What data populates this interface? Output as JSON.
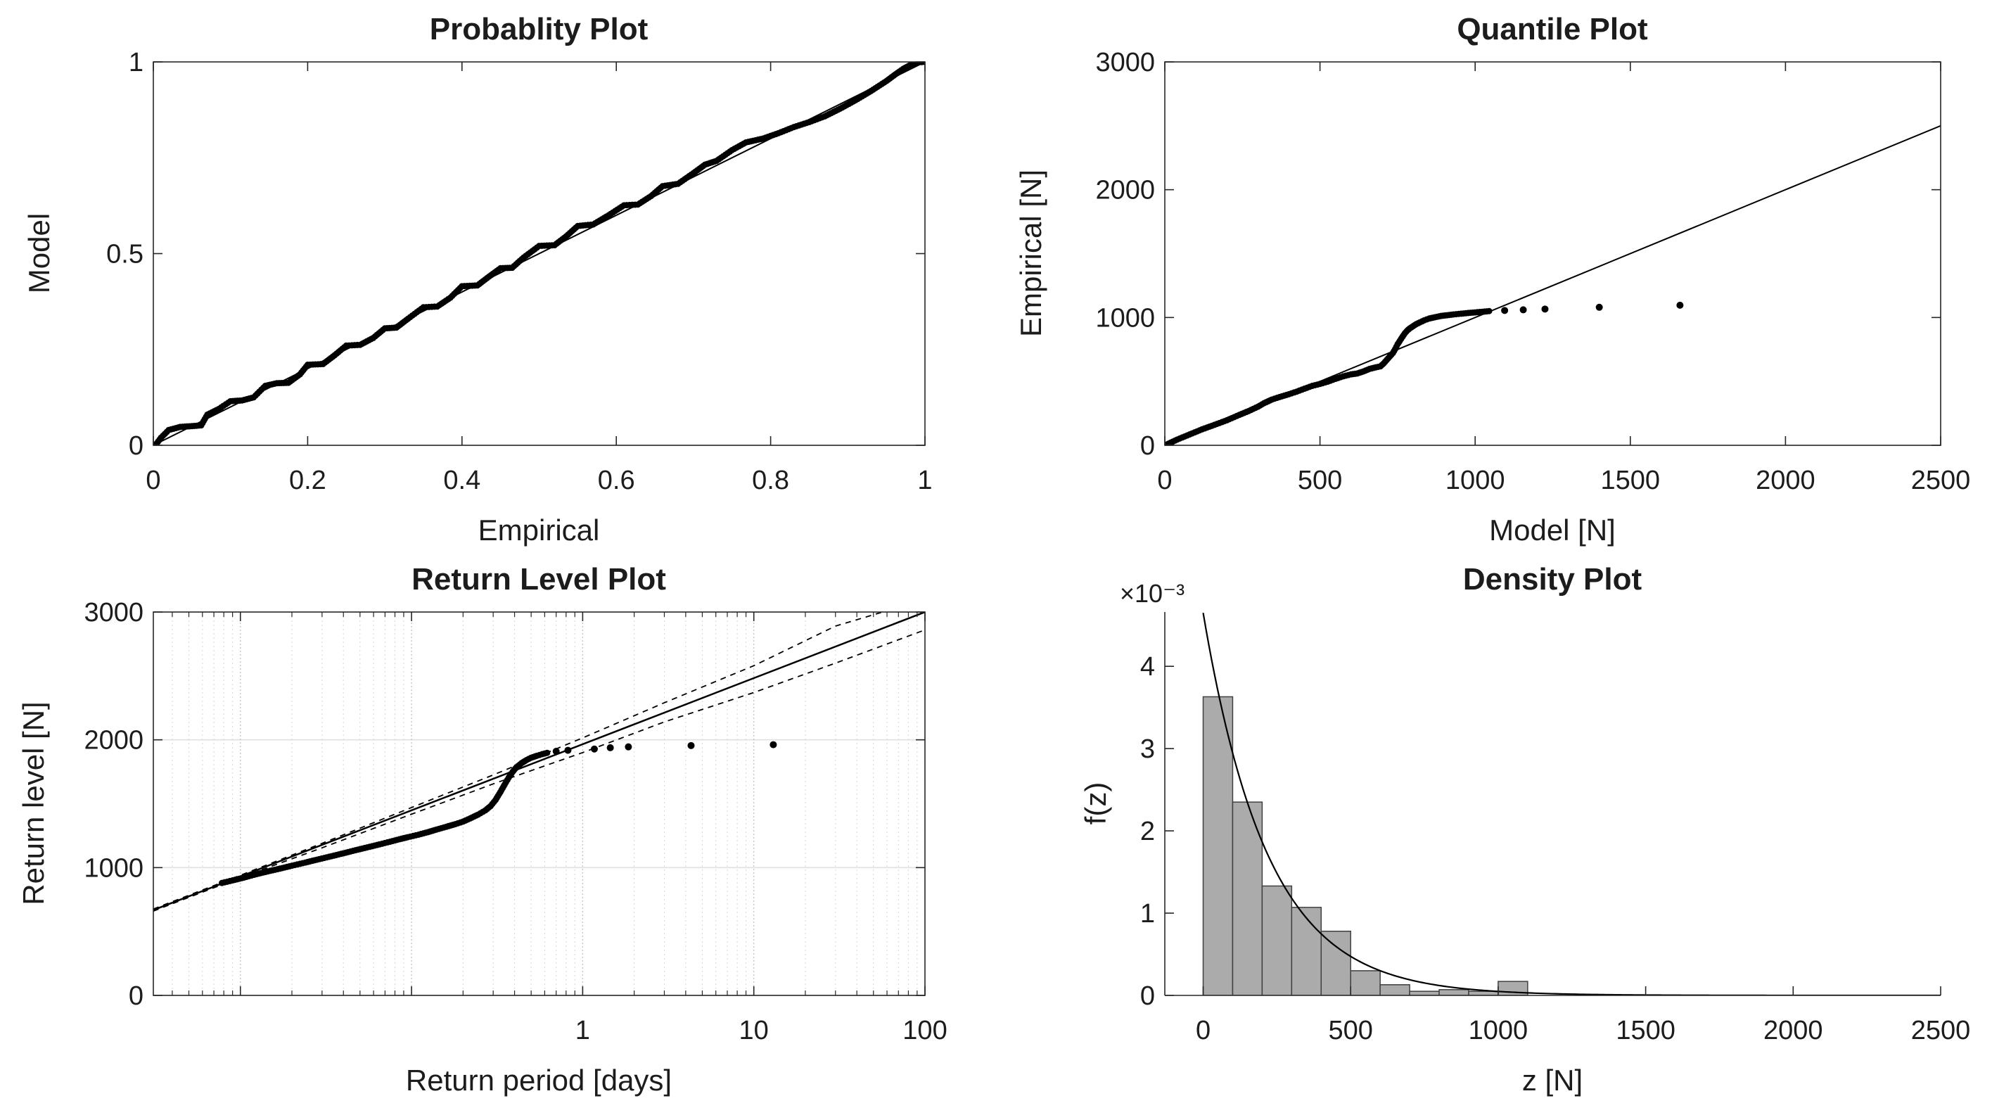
{
  "figure": {
    "background": "#ffffff",
    "axis_color": "#262626",
    "data_color": "#000000",
    "grid_major_color": "#c3c3c3",
    "grid_minor_color": "#d6d6d6",
    "bar_fill": "#ababab",
    "bar_edge": "#404040"
  },
  "chart_data": [
    {
      "id": "probability-plot",
      "type": "scatter",
      "title": "Probablity Plot",
      "xlabel": "Empirical",
      "ylabel": "Model",
      "xscale": "linear",
      "xlim": [
        0,
        1
      ],
      "ylim": [
        0,
        1
      ],
      "xticks": [
        0,
        0.2,
        0.4,
        0.6,
        0.8,
        1
      ],
      "xtick_labels": [
        "0",
        "0.2",
        "0.4",
        "0.6",
        "0.8",
        "1"
      ],
      "yticks": [
        0,
        0.5,
        1
      ],
      "ytick_labels": [
        "0",
        "0.5",
        "1"
      ],
      "box": true,
      "grid": false,
      "legend": "none",
      "series": [
        {
          "name": "reference-line",
          "kind": "line",
          "width": 2,
          "points": [
            [
              0,
              0
            ],
            [
              1,
              1
            ]
          ]
        },
        {
          "name": "model-vs-empirical-points",
          "kind": "scatter",
          "marker": 4.5,
          "interpolate": true,
          "step": 4,
          "points": [
            [
              0.004,
              0.004
            ],
            [
              0.01,
              0.02
            ],
            [
              0.02,
              0.04
            ],
            [
              0.035,
              0.048
            ],
            [
              0.05,
              0.05
            ],
            [
              0.062,
              0.052
            ],
            [
              0.07,
              0.08
            ],
            [
              0.085,
              0.095
            ],
            [
              0.1,
              0.115
            ],
            [
              0.115,
              0.117
            ],
            [
              0.13,
              0.125
            ],
            [
              0.145,
              0.155
            ],
            [
              0.16,
              0.162
            ],
            [
              0.175,
              0.163
            ],
            [
              0.19,
              0.185
            ],
            [
              0.2,
              0.21
            ],
            [
              0.22,
              0.212
            ],
            [
              0.235,
              0.235
            ],
            [
              0.25,
              0.26
            ],
            [
              0.268,
              0.262
            ],
            [
              0.285,
              0.28
            ],
            [
              0.3,
              0.305
            ],
            [
              0.315,
              0.307
            ],
            [
              0.33,
              0.33
            ],
            [
              0.35,
              0.36
            ],
            [
              0.368,
              0.362
            ],
            [
              0.385,
              0.385
            ],
            [
              0.4,
              0.415
            ],
            [
              0.42,
              0.417
            ],
            [
              0.435,
              0.44
            ],
            [
              0.45,
              0.462
            ],
            [
              0.465,
              0.463
            ],
            [
              0.48,
              0.49
            ],
            [
              0.5,
              0.52
            ],
            [
              0.52,
              0.522
            ],
            [
              0.535,
              0.545
            ],
            [
              0.55,
              0.572
            ],
            [
              0.57,
              0.576
            ],
            [
              0.59,
              0.6
            ],
            [
              0.61,
              0.626
            ],
            [
              0.628,
              0.628
            ],
            [
              0.645,
              0.65
            ],
            [
              0.66,
              0.676
            ],
            [
              0.68,
              0.682
            ],
            [
              0.7,
              0.71
            ],
            [
              0.715,
              0.732
            ],
            [
              0.73,
              0.742
            ],
            [
              0.75,
              0.77
            ],
            [
              0.768,
              0.79
            ],
            [
              0.79,
              0.8
            ],
            [
              0.81,
              0.814
            ],
            [
              0.83,
              0.83
            ],
            [
              0.85,
              0.843
            ],
            [
              0.87,
              0.858
            ],
            [
              0.89,
              0.878
            ],
            [
              0.91,
              0.9
            ],
            [
              0.93,
              0.924
            ],
            [
              0.95,
              0.95
            ],
            [
              0.962,
              0.968
            ],
            [
              0.972,
              0.982
            ],
            [
              0.982,
              0.993
            ],
            [
              0.992,
              0.999
            ],
            [
              0.999,
              1.0
            ]
          ]
        }
      ]
    },
    {
      "id": "quantile-plot",
      "type": "scatter",
      "title": "Quantile Plot",
      "xlabel": "Model [N]",
      "ylabel": "Empirical [N]",
      "xscale": "linear",
      "xlim": [
        0,
        2500
      ],
      "ylim": [
        0,
        3000
      ],
      "xticks": [
        0,
        500,
        1000,
        1500,
        2000,
        2500
      ],
      "xtick_labels": [
        "0",
        "500",
        "1000",
        "1500",
        "2000",
        "2500"
      ],
      "yticks": [
        0,
        1000,
        2000,
        3000
      ],
      "ytick_labels": [
        "0",
        "1000",
        "2000",
        "3000"
      ],
      "box": true,
      "grid": false,
      "legend": "none",
      "series": [
        {
          "name": "reference-line",
          "kind": "line",
          "width": 2,
          "points": [
            [
              0,
              0
            ],
            [
              2500,
              2500
            ]
          ]
        },
        {
          "name": "dense-quantile-points",
          "kind": "scatter",
          "marker": 4.5,
          "interpolate": true,
          "step": 4,
          "points": [
            [
              5,
              5
            ],
            [
              40,
              45
            ],
            [
              80,
              85
            ],
            [
              120,
              125
            ],
            [
              160,
              160
            ],
            [
              200,
              196
            ],
            [
              240,
              238
            ],
            [
              270,
              268
            ],
            [
              300,
              302
            ],
            [
              320,
              330
            ],
            [
              345,
              358
            ],
            [
              370,
              378
            ],
            [
              400,
              400
            ],
            [
              425,
              420
            ],
            [
              450,
              443
            ],
            [
              475,
              465
            ],
            [
              500,
              480
            ],
            [
              525,
              498
            ],
            [
              550,
              520
            ],
            [
              575,
              540
            ],
            [
              600,
              555
            ],
            [
              620,
              562
            ],
            [
              640,
              578
            ],
            [
              660,
              598
            ],
            [
              680,
              610
            ],
            [
              695,
              618
            ],
            [
              705,
              640
            ],
            [
              715,
              668
            ],
            [
              725,
              695
            ],
            [
              735,
              722
            ],
            [
              742,
              752
            ],
            [
              750,
              790
            ],
            [
              758,
              820
            ],
            [
              766,
              850
            ],
            [
              774,
              878
            ],
            [
              782,
              900
            ],
            [
              790,
              916
            ],
            [
              800,
              932
            ],
            [
              810,
              948
            ],
            [
              822,
              962
            ],
            [
              836,
              978
            ],
            [
              852,
              992
            ],
            [
              870,
              1002
            ],
            [
              890,
              1012
            ],
            [
              910,
              1018
            ],
            [
              930,
              1024
            ],
            [
              955,
              1030
            ],
            [
              985,
              1037
            ],
            [
              1015,
              1043
            ],
            [
              1045,
              1050
            ]
          ]
        },
        {
          "name": "sparse-quantile-points",
          "kind": "scatter",
          "marker": 5,
          "interpolate": false,
          "points": [
            [
              1095,
              1055
            ],
            [
              1155,
              1060
            ],
            [
              1225,
              1066
            ],
            [
              1400,
              1080
            ],
            [
              1660,
              1096
            ]
          ]
        }
      ]
    },
    {
      "id": "return-level-plot",
      "type": "scatter",
      "title": "Return Level Plot",
      "xlabel": "Return period [days]",
      "ylabel": "Return level [N]",
      "xscale": "log",
      "xlim": [
        0.0031,
        100
      ],
      "ylim": [
        0,
        3000
      ],
      "xticks": [
        0.01,
        0.1,
        1,
        10,
        100
      ],
      "xtick_labels": [
        "",
        "",
        "1",
        "10",
        "100"
      ],
      "yticks": [
        0,
        1000,
        2000,
        3000
      ],
      "ytick_labels": [
        "0",
        "1000",
        "2000",
        "3000"
      ],
      "box": true,
      "grid": true,
      "grid_y": [
        1000,
        2000
      ],
      "legend": "none",
      "series": [
        {
          "name": "fitted-return-level-line",
          "kind": "line",
          "width": 2.5,
          "points": [
            [
              0.0031,
              668
            ],
            [
              100,
              3000
            ]
          ]
        },
        {
          "name": "upper-confidence-line",
          "kind": "line",
          "width": 1.8,
          "dash": "8 7",
          "points": [
            [
              0.0031,
              676
            ],
            [
              0.01,
              940
            ],
            [
              0.03,
              1190
            ],
            [
              0.1,
              1470
            ],
            [
              0.3,
              1725
            ],
            [
              1,
              2015
            ],
            [
              3,
              2290
            ],
            [
              10,
              2580
            ],
            [
              30,
              2890
            ],
            [
              60,
              3010
            ],
            [
              100,
              3130
            ]
          ]
        },
        {
          "name": "lower-confidence-line",
          "kind": "line",
          "width": 1.8,
          "dash": "8 7",
          "points": [
            [
              0.0031,
              660
            ],
            [
              0.01,
              922
            ],
            [
              0.03,
              1155
            ],
            [
              0.1,
              1418
            ],
            [
              0.3,
              1655
            ],
            [
              1,
              1900
            ],
            [
              3,
              2140
            ],
            [
              10,
              2370
            ],
            [
              30,
              2600
            ],
            [
              100,
              2860
            ]
          ]
        },
        {
          "name": "dense-return-points",
          "kind": "scatter",
          "marker": 4.5,
          "interpolate": true,
          "step": 4,
          "points": [
            [
              0.0078,
              880
            ],
            [
              0.009,
              900
            ],
            [
              0.0105,
              922
            ],
            [
              0.012,
              944
            ],
            [
              0.014,
              966
            ],
            [
              0.017,
              992
            ],
            [
              0.02,
              1015
            ],
            [
              0.024,
              1040
            ],
            [
              0.028,
              1062
            ],
            [
              0.033,
              1085
            ],
            [
              0.04,
              1112
            ],
            [
              0.047,
              1136
            ],
            [
              0.055,
              1158
            ],
            [
              0.065,
              1182
            ],
            [
              0.075,
              1203
            ],
            [
              0.085,
              1222
            ],
            [
              0.095,
              1238
            ],
            [
              0.11,
              1258
            ],
            [
              0.125,
              1278
            ],
            [
              0.14,
              1298
            ],
            [
              0.16,
              1320
            ],
            [
              0.18,
              1340
            ],
            [
              0.2,
              1360
            ],
            [
              0.22,
              1385
            ],
            [
              0.245,
              1415
            ],
            [
              0.27,
              1448
            ],
            [
              0.29,
              1482
            ],
            [
              0.31,
              1530
            ],
            [
              0.33,
              1590
            ],
            [
              0.35,
              1650
            ],
            [
              0.37,
              1705
            ],
            [
              0.39,
              1750
            ],
            [
              0.41,
              1785
            ],
            [
              0.44,
              1818
            ],
            [
              0.47,
              1842
            ],
            [
              0.5,
              1860
            ],
            [
              0.54,
              1875
            ],
            [
              0.58,
              1888
            ],
            [
              0.62,
              1898
            ]
          ]
        },
        {
          "name": "sparse-return-points",
          "kind": "scatter",
          "marker": 5,
          "interpolate": false,
          "points": [
            [
              0.7,
              1910
            ],
            [
              0.82,
              1918
            ],
            [
              1.17,
              1928
            ],
            [
              1.45,
              1938
            ],
            [
              1.85,
              1945
            ],
            [
              4.3,
              1955
            ],
            [
              13,
              1962
            ]
          ]
        }
      ]
    },
    {
      "id": "density-plot",
      "type": "bar",
      "title": "Density Plot",
      "xlabel": "z [N]",
      "ylabel": "f(z)",
      "exponent_label": "×10⁻³",
      "xscale": "linear",
      "xlim": [
        -130,
        2500
      ],
      "ylim": [
        0,
        0.00466
      ],
      "xticks": [
        0,
        500,
        1000,
        1500,
        2000,
        2500
      ],
      "xtick_labels": [
        "0",
        "500",
        "1000",
        "1500",
        "2000",
        "2500"
      ],
      "yticks": [
        0,
        0.001,
        0.002,
        0.003,
        0.004
      ],
      "ytick_labels": [
        "0",
        "1",
        "2",
        "3",
        "4"
      ],
      "box": false,
      "grid": false,
      "legend": "none",
      "series": [
        {
          "name": "density-histogram",
          "kind": "histogram",
          "bin_start": 0,
          "bin_width": 100,
          "heights": [
            0.00363,
            0.00235,
            0.00133,
            0.00107,
            0.00078,
            0.0003,
            0.00013,
            5e-05,
            7e-05,
            5e-05,
            0.00017
          ]
        },
        {
          "name": "fitted-density-curve",
          "kind": "exp_curve",
          "width": 2.2,
          "a": 0.00465,
          "tau": 219,
          "x_from": 0,
          "x_to": 2500
        }
      ]
    }
  ]
}
